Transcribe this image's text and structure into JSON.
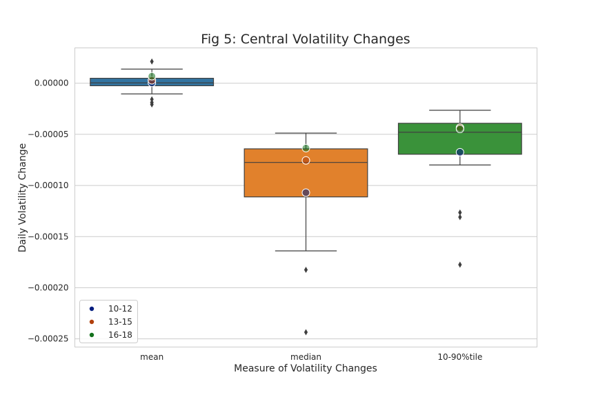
{
  "chart_data": {
    "type": "box",
    "title": "Fig 5: Central Volatility Changes",
    "xlabel": "Measure of Volatility Changes",
    "ylabel": "Daily Volatility Change",
    "ylim": [
      -0.000258,
      3.45e-05
    ],
    "yticks": [
      0.0,
      -5e-05,
      -0.0001,
      -0.00015,
      -0.0002,
      -0.00025
    ],
    "ytick_labels": [
      "0.00000",
      "−0.00005",
      "−0.00010",
      "−0.00015",
      "−0.00020",
      "−0.00025"
    ],
    "grid": true,
    "categories": [
      "mean",
      "median",
      "10-90%tile"
    ],
    "boxes": [
      {
        "category": "mean",
        "color": "#3274a1",
        "whisker_low": -1.05e-05,
        "q1": -2.5e-06,
        "median": 3e-07,
        "q3": 4.8e-06,
        "whisker_high": 1.38e-05,
        "outliers": [
          2.12e-05,
          -1.58e-05,
          -1.88e-05,
          -2.08e-05
        ]
      },
      {
        "category": "median",
        "color": "#e1812c",
        "whisker_low": -0.000164,
        "q1": -0.0001112,
        "median": -7.75e-05,
        "q3": -6.42e-05,
        "whisker_high": -4.88e-05,
        "outliers": [
          -0.0001825,
          -0.0002435
        ]
      },
      {
        "category": "10-90%tile",
        "color": "#3a923a",
        "whisker_low": -8e-05,
        "q1": -6.95e-05,
        "median": -4.8e-05,
        "q3": -3.92e-05,
        "whisker_high": -2.65e-05,
        "outliers": [
          -0.0001265,
          -0.000131,
          -0.0001775
        ]
      }
    ],
    "legend": {
      "placement": "lower-left",
      "entries": [
        {
          "label": "10-12",
          "color": "#001c7f"
        },
        {
          "label": "13-15",
          "color": "#b1400d"
        },
        {
          "label": "16-18",
          "color": "#12711c"
        }
      ]
    },
    "points": [
      {
        "category": "mean",
        "series": "10-12",
        "value": 3e-07
      },
      {
        "category": "mean",
        "series": "13-15",
        "value": 2.8e-06
      },
      {
        "category": "mean",
        "series": "16-18",
        "value": 6.8e-06
      },
      {
        "category": "median",
        "series": "10-12",
        "value": -0.000107
      },
      {
        "category": "median",
        "series": "13-15",
        "value": -7.55e-05
      },
      {
        "category": "median",
        "series": "16-18",
        "value": -6.35e-05
      },
      {
        "category": "10-90%tile",
        "series": "10-12",
        "value": -6.75e-05
      },
      {
        "category": "10-90%tile",
        "series": "13-15",
        "value": -4.35e-05
      },
      {
        "category": "10-90%tile",
        "series": "16-18",
        "value": -4.48e-05
      }
    ]
  }
}
